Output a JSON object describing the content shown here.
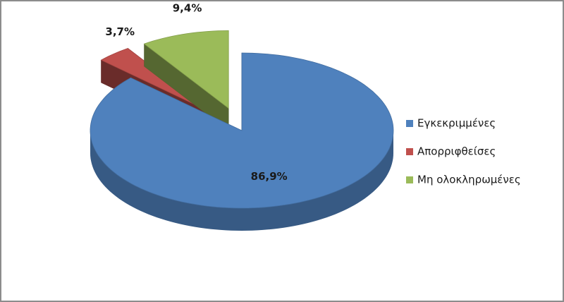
{
  "chart_data": {
    "type": "pie",
    "categories": [
      "Εγκεκριμμένες",
      "Απορριφθείσες",
      "Μη ολοκληρωμένες"
    ],
    "values": [
      86.9,
      3.7,
      9.4
    ],
    "value_labels": [
      "86,9%",
      "3,7%",
      "9,4%"
    ],
    "colors": [
      "#4f81bd",
      "#c0504d",
      "#9bbb59"
    ],
    "legend": "right"
  }
}
